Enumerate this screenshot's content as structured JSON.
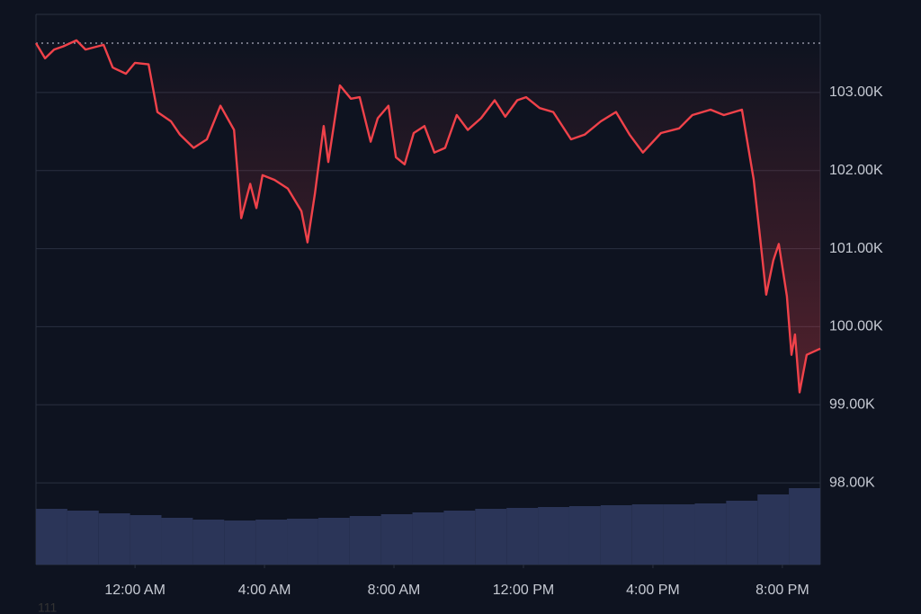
{
  "chart_data": {
    "type": "line",
    "series": [
      {
        "color": "#f0424a",
        "x": [
          -3.06,
          -2.78,
          -2.5,
          -2.22,
          -1.81,
          -1.53,
          -0.97,
          -0.69,
          -0.28,
          0,
          0.42,
          0.69,
          1.11,
          1.39,
          1.81,
          2.22,
          2.64,
          3.06,
          3.28,
          3.56,
          3.75,
          3.94,
          4.31,
          4.72,
          5.14,
          5.33,
          5.56,
          5.83,
          5.97,
          6.33,
          6.67,
          6.94,
          7.28,
          7.5,
          7.83,
          8.06,
          8.33,
          8.61,
          8.94,
          9.25,
          9.58,
          9.94,
          10.28,
          10.69,
          11.11,
          11.44,
          11.81,
          12.08,
          12.5,
          12.92,
          13.47,
          13.89,
          14.39,
          14.86,
          15.28,
          15.69,
          16.25,
          16.81,
          17.22,
          17.78,
          18.19,
          18.75,
          19.11,
          19.31,
          19.5,
          19.72,
          19.89,
          20.14,
          20.28,
          20.39,
          20.53,
          20.75,
          21.17
        ],
        "values": [
          103632,
          103437,
          103550,
          103590,
          103667,
          103550,
          103610,
          103320,
          103240,
          103380,
          103360,
          102750,
          102630,
          102460,
          102290,
          102400,
          102830,
          102520,
          101390,
          101830,
          101520,
          101940,
          101880,
          101770,
          101480,
          101080,
          101710,
          102570,
          102110,
          103090,
          102920,
          102940,
          102370,
          102670,
          102830,
          102170,
          102080,
          102480,
          102570,
          102230,
          102290,
          102710,
          102520,
          102670,
          102900,
          102690,
          102900,
          102940,
          102800,
          102750,
          102400,
          102460,
          102630,
          102750,
          102460,
          102230,
          102480,
          102540,
          102710,
          102780,
          102710,
          102780,
          101890,
          101140,
          100410,
          100850,
          101060,
          100390,
          99640,
          99900,
          99160,
          99640,
          99720
        ]
      }
    ],
    "reference_line": 103632,
    "volume": {
      "color": "#2b3558",
      "values": [
        62,
        60,
        57,
        55,
        52,
        50,
        49,
        50,
        51,
        52,
        54,
        56,
        58,
        60,
        62,
        63,
        64,
        65,
        66,
        67,
        67,
        68,
        71,
        78,
        85
      ]
    },
    "xlim": [
      -3.06,
      21.17
    ],
    "xticks": [
      {
        "value": 0,
        "label": "12:00 AM"
      },
      {
        "value": 4,
        "label": "4:00 AM"
      },
      {
        "value": 8,
        "label": "8:00 AM"
      },
      {
        "value": 12,
        "label": "12:00 PM"
      },
      {
        "value": 16,
        "label": "4:00 PM"
      },
      {
        "value": 20,
        "label": "8:00 PM"
      }
    ],
    "ylim": [
      96954,
      104000
    ],
    "yticks": [
      {
        "value": 103000,
        "label": "103.00K"
      },
      {
        "value": 102000,
        "label": "102.00K"
      },
      {
        "value": 101000,
        "label": "101.00K"
      },
      {
        "value": 100000,
        "label": "100.00K"
      },
      {
        "value": 99000,
        "label": "99.00K"
      },
      {
        "value": 98000,
        "label": "98.00K"
      }
    ],
    "grid": true,
    "footer": "111"
  }
}
